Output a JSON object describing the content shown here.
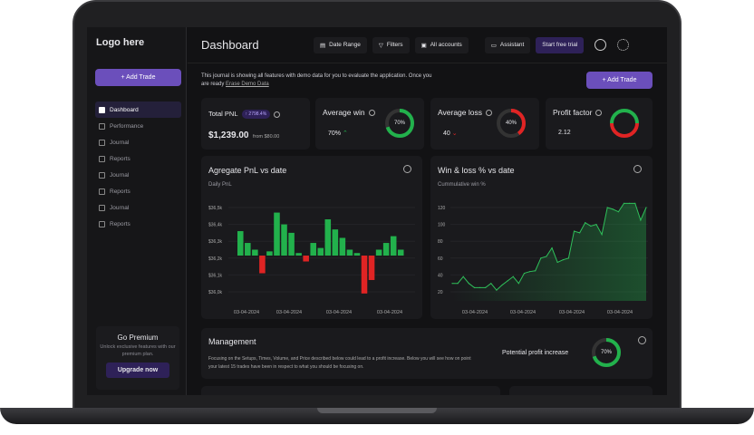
{
  "sidebar": {
    "logo": "Logo here",
    "add_trade": "+ Add Trade",
    "items": [
      {
        "label": "Dashboard",
        "active": true
      },
      {
        "label": "Performance"
      },
      {
        "label": "Journal"
      },
      {
        "label": "Reports"
      },
      {
        "label": "Journal"
      },
      {
        "label": "Reports"
      },
      {
        "label": "Journal"
      },
      {
        "label": "Reports"
      }
    ],
    "premium": {
      "title": "Go Premium",
      "desc": "Unlock exclusive features with our premium plan.",
      "button": "Upgrade now"
    }
  },
  "header": {
    "title": "Dashboard",
    "date_range": "Date Range",
    "filters": "Filters",
    "accounts": "All accounts",
    "assistant": "Assistant",
    "trial": "Start free trial"
  },
  "intro": {
    "text": "This journal is showing all features with demo data for you to evaluate the application. Once you are ready ",
    "link": "Erase Demo Data",
    "add_trade": "+ Add Trade"
  },
  "stats": {
    "total_pnl": {
      "label": "Total PNL",
      "badge": "↑ 2798.4%",
      "value": "$1,239.00",
      "from": "from $80.00"
    },
    "avg_win": {
      "label": "Average win",
      "value": "70%",
      "ring": "70%",
      "pct": 0.7
    },
    "avg_loss": {
      "label": "Average loss",
      "value": "40",
      "ring": "40%",
      "pct": 0.4
    },
    "profit_factor": {
      "label": "Profit factor",
      "value": "2.12"
    }
  },
  "colors": {
    "green": "#22b14c",
    "red": "#e02424",
    "accent": "#6b4fbb"
  },
  "chart_data": [
    {
      "type": "bar",
      "title": "Agregate PnL vs date",
      "subtitle": "Daily PnL",
      "yticks": [
        "$36,5k",
        "$36,4k",
        "$36,3k",
        "$36,2k",
        "$36,1k",
        "$36,0k"
      ],
      "ylim": [
        36.0,
        36.5
      ],
      "baseline": 36.215,
      "xticks": [
        "03-04-2024",
        "03-04-2024",
        "03-04-2024",
        "03-04-2024"
      ],
      "values": [
        36.36,
        36.29,
        36.25,
        36.11,
        36.24,
        36.47,
        36.4,
        36.35,
        36.23,
        36.18,
        36.29,
        36.26,
        36.43,
        36.37,
        36.32,
        36.25,
        36.23,
        35.99,
        36.07,
        36.25,
        36.29,
        36.33,
        36.25
      ]
    },
    {
      "type": "area",
      "title": "Win & loss % vs date",
      "subtitle": "Cummulative win %",
      "yticks": [
        "120",
        "100",
        "80",
        "60",
        "40",
        "20"
      ],
      "ylim": [
        20,
        120
      ],
      "xticks": [
        "03-04-2024",
        "03-04-2024",
        "03-04-2024",
        "03-04-2024"
      ],
      "values": [
        30,
        30,
        38,
        30,
        25,
        25,
        25,
        30,
        22,
        28,
        33,
        38,
        30,
        42,
        44,
        45,
        60,
        62,
        72,
        55,
        58,
        60,
        92,
        90,
        102,
        98,
        100,
        88,
        120,
        118,
        115,
        125,
        125,
        125,
        105,
        120
      ]
    }
  ],
  "management": {
    "title": "Management",
    "desc": "Focusing on the Setups, Times, Volume, and Price described below could lead to a profit increase. Below you will see how on point your latest 15 trades have been in respect to what you should be focusing on.",
    "potential_label": "Potential profit increase",
    "ring": "70%",
    "pct": 0.7
  }
}
